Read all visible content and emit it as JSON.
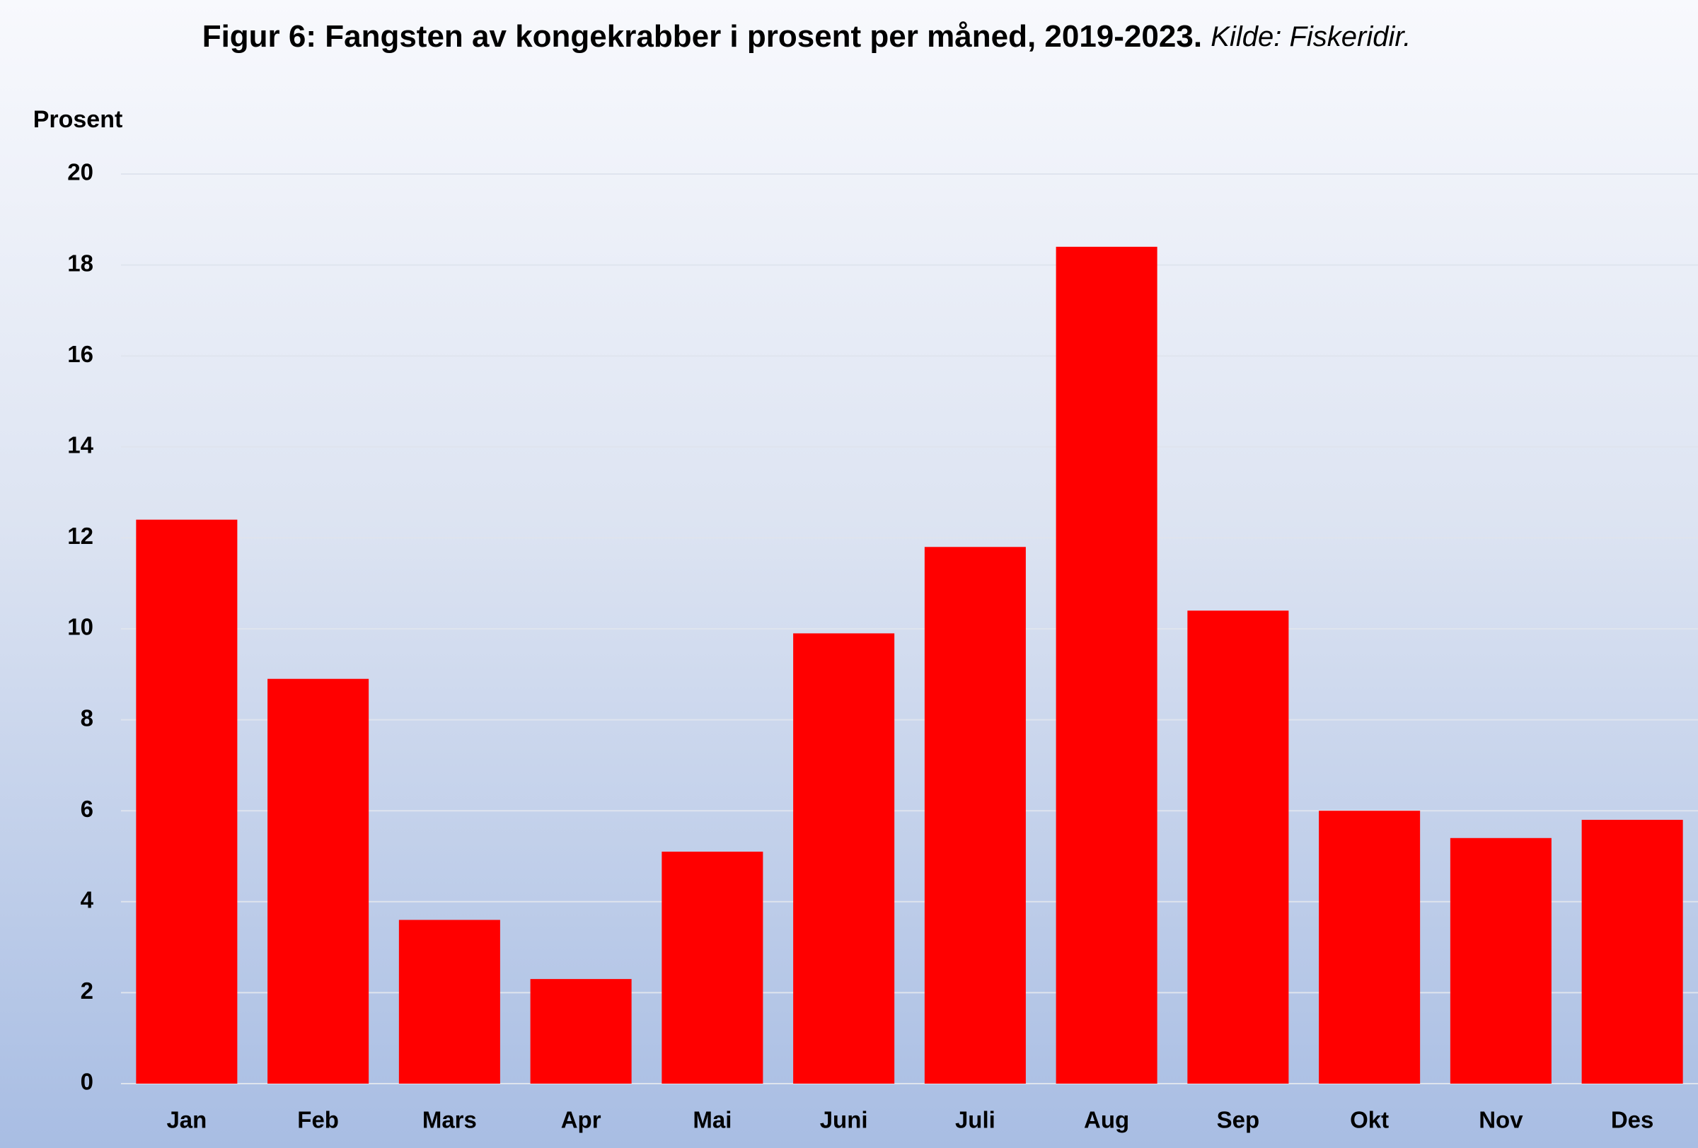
{
  "chart_data": {
    "type": "bar",
    "title": "Figur 6: Fangsten av kongekrabber i prosent per måned,  2019-2023.",
    "source": "Kilde: Fiskeridir.",
    "y_label": "Prosent",
    "categories": [
      "Jan",
      "Feb",
      "Mars",
      "Apr",
      "Mai",
      "Juni",
      "Juli",
      "Aug",
      "Sep",
      "Okt",
      "Nov",
      "Des"
    ],
    "values": [
      12.4,
      8.9,
      3.6,
      2.3,
      5.1,
      9.9,
      11.8,
      18.4,
      10.4,
      6.0,
      5.4,
      5.8
    ],
    "color": "#ff0000",
    "ylim": [
      0,
      20
    ],
    "yticks": [
      0,
      2,
      4,
      6,
      8,
      10,
      12,
      14,
      16,
      18,
      20
    ],
    "grid": true
  }
}
